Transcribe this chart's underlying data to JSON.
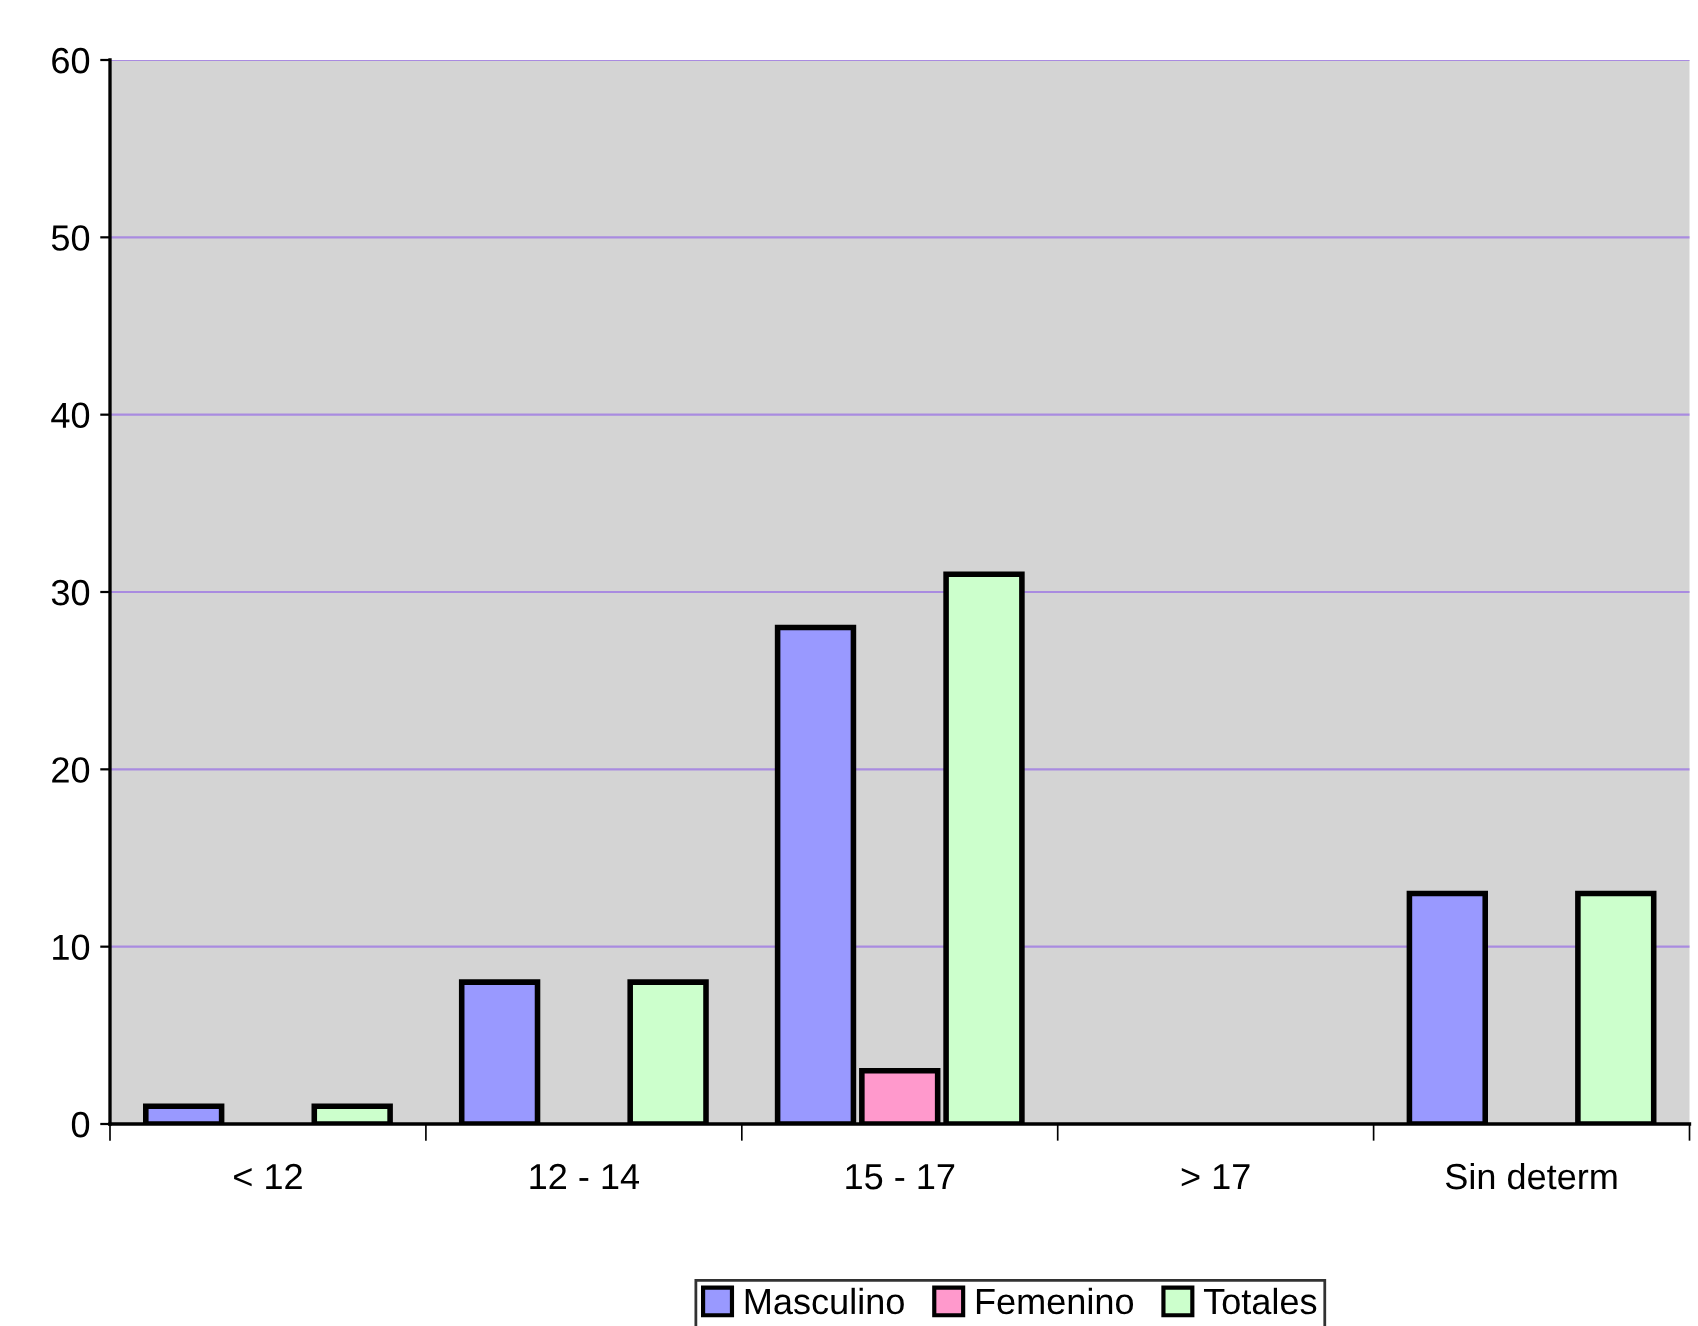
{
  "chart_data": {
    "type": "bar",
    "categories": [
      "< 12",
      "12 - 14",
      "15 - 17",
      "> 17",
      "Sin determ"
    ],
    "series": [
      {
        "name": "Masculino",
        "color": "#9999ff",
        "values": [
          1,
          8,
          28,
          null,
          13
        ]
      },
      {
        "name": "Femenino",
        "color": "#ff99cc",
        "values": [
          null,
          null,
          3,
          null,
          null
        ]
      },
      {
        "name": "Totales",
        "color": "#ccffcc",
        "values": [
          1,
          8,
          31,
          null,
          13
        ]
      }
    ],
    "ylim": [
      0,
      60
    ],
    "yticks": [
      0,
      10,
      20,
      30,
      40,
      50,
      60
    ],
    "grid": "y",
    "legend": "bottom"
  }
}
